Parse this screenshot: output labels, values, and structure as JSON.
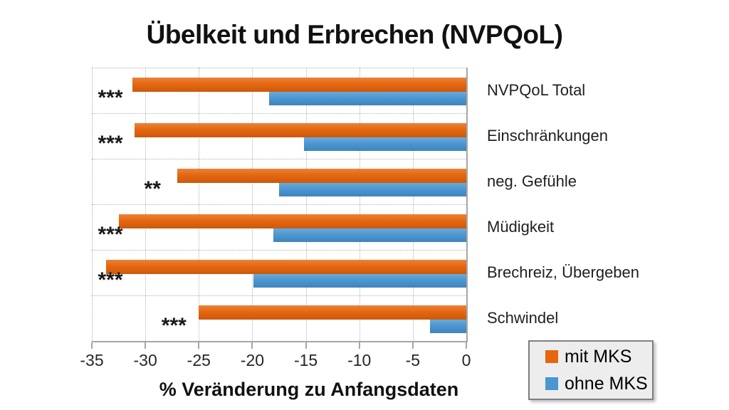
{
  "title": "Übelkeit und Erbrechen (NVPQoL)",
  "chart_data": {
    "type": "bar",
    "orientation": "horizontal",
    "title": "Übelkeit und Erbrechen (NVPQoL)",
    "categories": [
      "NVPQoL Total",
      "Einschränkungen",
      "neg. Gefühle",
      "Müdigkeit",
      "Brechreiz, Übergeben",
      "Schwindel"
    ],
    "series": [
      {
        "name": "mit MKS",
        "color": "#e5660e",
        "values": [
          -31.2,
          -31.0,
          -27.0,
          -32.5,
          -33.7,
          -25.0
        ]
      },
      {
        "name": "ohne MKS",
        "color": "#4a96d2",
        "values": [
          -18.4,
          -15.2,
          -17.5,
          -18.0,
          -19.9,
          -3.4
        ]
      }
    ],
    "significance": [
      "***",
      "***",
      "**",
      "***",
      "***",
      "***"
    ],
    "xlabel": "% Veränderung zu Anfangsdaten",
    "x_ticks": [
      -35,
      -30,
      -25,
      -20,
      -15,
      -10,
      -5,
      0
    ],
    "xlim": [
      -35,
      0
    ],
    "grid": true,
    "legend_position": "bottom-right"
  },
  "colors": {
    "axis": "#a6a6a6",
    "gridline": "#b3b3b3",
    "text": "#1f1f1f",
    "legend_bg": "#ededed",
    "legend_border": "#7f7f7f"
  }
}
